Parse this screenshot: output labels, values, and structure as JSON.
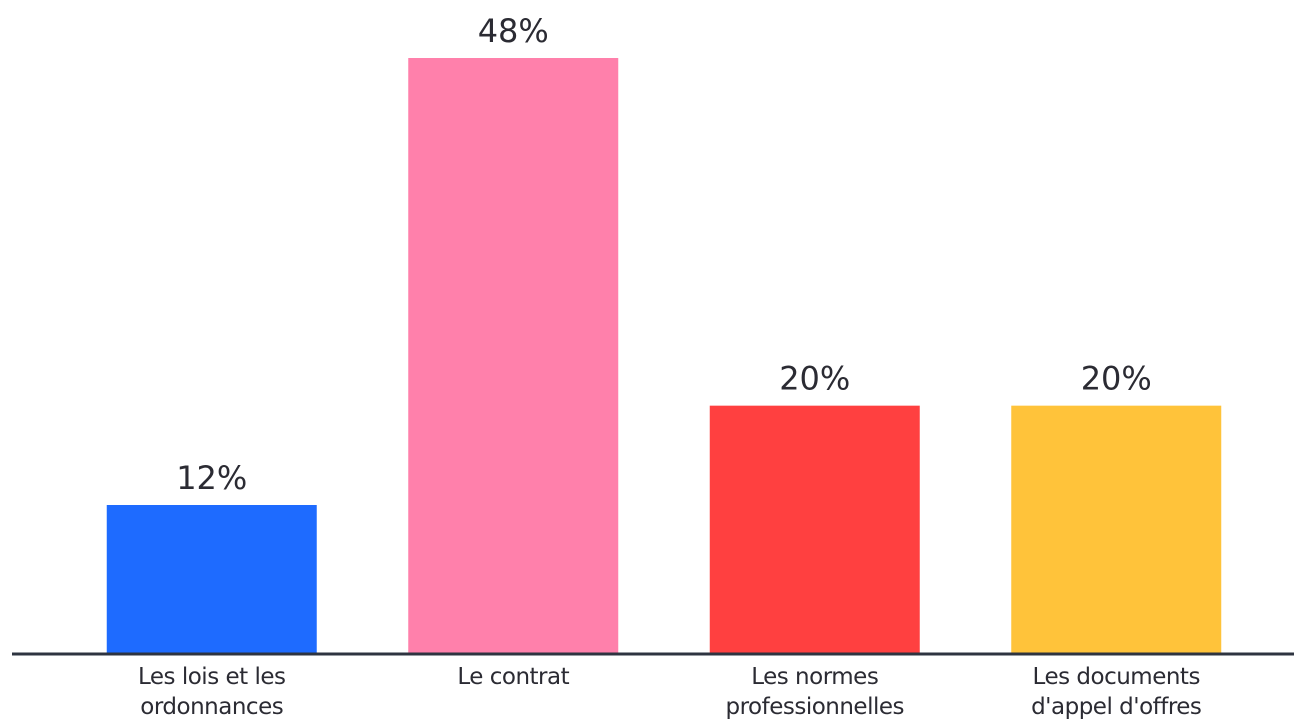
{
  "chart_data": {
    "type": "bar",
    "categories": [
      "Les lois et les\nordonnances",
      "Le contrat",
      "Les normes\nprofessionnelles",
      "Les documents\nd'appel d'offres"
    ],
    "values": [
      12,
      48,
      20,
      20
    ],
    "value_labels": [
      "12%",
      "48%",
      "20%",
      "20%"
    ],
    "colors": [
      "#1e6bff",
      "#ff80ab",
      "#ff4040",
      "#ffc33a"
    ]
  }
}
